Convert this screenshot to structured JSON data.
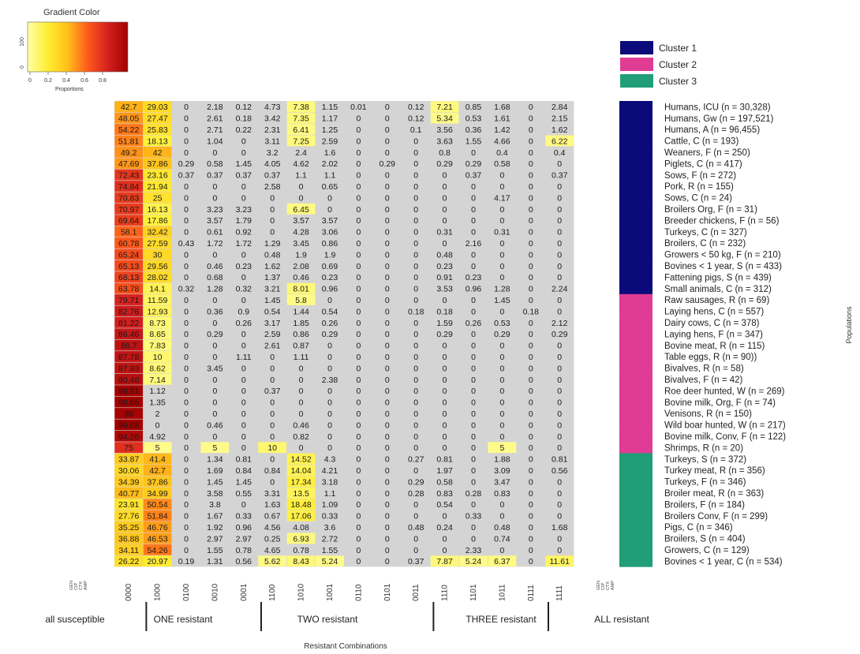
{
  "chart_data": {
    "type": "heatmap",
    "color_key": {
      "title": "Gradient Color",
      "ticks": [
        "0",
        "0.2",
        "0.4",
        "0.6",
        "0.8"
      ],
      "xlabel": "Proportions",
      "yticks": [
        "0",
        "100"
      ],
      "colors": [
        "#ffffa8",
        "#ffee33",
        "#ffbf1a",
        "#ff5a1a",
        "#d62020",
        "#a10000"
      ]
    },
    "cluster_legend": [
      {
        "name": "Cluster 1",
        "color": "#0a0a7a"
      },
      {
        "name": "Cluster 2",
        "color": "#e03c96"
      },
      {
        "name": "Cluster 3",
        "color": "#1f9e77"
      }
    ],
    "columns": [
      "0000",
      "1000",
      "0100",
      "0010",
      "0001",
      "1100",
      "1010",
      "1001",
      "0110",
      "0101",
      "0011",
      "1110",
      "1101",
      "1011",
      "0111",
      "1111"
    ],
    "bottom_axis_labels": [
      "GEN",
      "CIP",
      "CTX",
      "AMP"
    ],
    "groups": [
      "all susceptible",
      "ONE resistant",
      "TWO resistant",
      "THREE resistant",
      "ALL resistant"
    ],
    "xlabel": "Resistant Combinations",
    "ylabel": "Populations",
    "rows": [
      {
        "label": "Humans, ICU (n = 30,328)",
        "cluster": 1,
        "values": [
          "42.7",
          "29.03",
          "0",
          "2.18",
          "0.12",
          "4.73",
          "7.38",
          "1.15",
          "0.01",
          "0",
          "0.12",
          "7.21",
          "0.85",
          "1.68",
          "0",
          "2.84"
        ]
      },
      {
        "label": "Humans, Gw (n = 197,521)",
        "cluster": 1,
        "values": [
          "48.05",
          "27.47",
          "0",
          "2.61",
          "0.18",
          "3.42",
          "7.35",
          "1.17",
          "0",
          "0",
          "0.12",
          "5.34",
          "0.53",
          "1.61",
          "0",
          "2.15"
        ]
      },
      {
        "label": "Humans, A (n = 96,455)",
        "cluster": 1,
        "values": [
          "54.22",
          "25.83",
          "0",
          "2.71",
          "0.22",
          "2.31",
          "6.41",
          "1.25",
          "0",
          "0",
          "0.1",
          "3.56",
          "0.36",
          "1.42",
          "0",
          "1.62"
        ]
      },
      {
        "label": "Cattle, C (n = 193)",
        "cluster": 1,
        "values": [
          "51.81",
          "18.13",
          "0",
          "1.04",
          "0",
          "3.11",
          "7.25",
          "2.59",
          "0",
          "0",
          "0",
          "3.63",
          "1.55",
          "4.66",
          "0",
          "6.22"
        ]
      },
      {
        "label": "Weaners, F (n = 250)",
        "cluster": 1,
        "values": [
          "49.2",
          "42",
          "0",
          "0",
          "0",
          "3.2",
          "2.4",
          "1.6",
          "0",
          "0",
          "0",
          "0.8",
          "0",
          "0.4",
          "0",
          "0.4"
        ]
      },
      {
        "label": "Piglets, C (n = 417)",
        "cluster": 1,
        "values": [
          "47.69",
          "37.86",
          "0.29",
          "0.58",
          "1.45",
          "4.05",
          "4.62",
          "2.02",
          "0",
          "0.29",
          "0",
          "0.29",
          "0.29",
          "0.58",
          "0",
          "0"
        ]
      },
      {
        "label": "Sows, F (n = 272)",
        "cluster": 1,
        "values": [
          "72.43",
          "23.16",
          "0.37",
          "0.37",
          "0.37",
          "0.37",
          "1.1",
          "1.1",
          "0",
          "0",
          "0",
          "0",
          "0.37",
          "0",
          "0",
          "0.37"
        ]
      },
      {
        "label": "Pork, R (n = 155)",
        "cluster": 1,
        "values": [
          "74.84",
          "21.94",
          "0",
          "0",
          "0",
          "2.58",
          "0",
          "0.65",
          "0",
          "0",
          "0",
          "0",
          "0",
          "0",
          "0",
          "0"
        ]
      },
      {
        "label": "Sows, C (n = 24)",
        "cluster": 1,
        "values": [
          "70.83",
          "25",
          "0",
          "0",
          "0",
          "0",
          "0",
          "0",
          "0",
          "0",
          "0",
          "0",
          "0",
          "4.17",
          "0",
          "0"
        ]
      },
      {
        "label": "Broilers Org, F (n = 31)",
        "cluster": 1,
        "values": [
          "70.97",
          "16.13",
          "0",
          "3.23",
          "3.23",
          "0",
          "6.45",
          "0",
          "0",
          "0",
          "0",
          "0",
          "0",
          "0",
          "0",
          "0"
        ]
      },
      {
        "label": "Breeder chickens, F (n = 56)",
        "cluster": 1,
        "values": [
          "69.64",
          "17.86",
          "0",
          "3.57",
          "1.79",
          "0",
          "3.57",
          "3.57",
          "0",
          "0",
          "0",
          "0",
          "0",
          "0",
          "0",
          "0"
        ]
      },
      {
        "label": "Turkeys, C (n = 327)",
        "cluster": 1,
        "values": [
          "58.1",
          "32.42",
          "0",
          "0.61",
          "0.92",
          "0",
          "4.28",
          "3.06",
          "0",
          "0",
          "0",
          "0.31",
          "0",
          "0.31",
          "0",
          "0"
        ]
      },
      {
        "label": "Broilers, C (n = 232)",
        "cluster": 1,
        "values": [
          "60.78",
          "27.59",
          "0.43",
          "1.72",
          "1.72",
          "1.29",
          "3.45",
          "0.86",
          "0",
          "0",
          "0",
          "0",
          "2.16",
          "0",
          "0",
          "0"
        ]
      },
      {
        "label": "Growers < 50 kg, F (n = 210)",
        "cluster": 1,
        "values": [
          "65.24",
          "30",
          "0",
          "0",
          "0",
          "0.48",
          "1.9",
          "1.9",
          "0",
          "0",
          "0",
          "0.48",
          "0",
          "0",
          "0",
          "0"
        ]
      },
      {
        "label": "Bovines < 1 year, S (n = 433)",
        "cluster": 1,
        "values": [
          "65.13",
          "29.56",
          "0",
          "0.46",
          "0.23",
          "1.62",
          "2.08",
          "0.69",
          "0",
          "0",
          "0",
          "0.23",
          "0",
          "0",
          "0",
          "0"
        ]
      },
      {
        "label": "Fattening pigs, S (n = 439)",
        "cluster": 1,
        "values": [
          "68.13",
          "28.02",
          "0",
          "0.68",
          "0",
          "1.37",
          "0.46",
          "0.23",
          "0",
          "0",
          "0",
          "0.91",
          "0.23",
          "0",
          "0",
          "0"
        ]
      },
      {
        "label": "Small animals, C (n = 312)",
        "cluster": 1,
        "values": [
          "63.78",
          "14.1",
          "0.32",
          "1.28",
          "0.32",
          "3.21",
          "8.01",
          "0.96",
          "0",
          "0",
          "0",
          "3.53",
          "0.96",
          "1.28",
          "0",
          "2.24"
        ]
      },
      {
        "label": "Raw sausages, R (n = 69)",
        "cluster": 2,
        "values": [
          "79.71",
          "11.59",
          "0",
          "0",
          "0",
          "1.45",
          "5.8",
          "0",
          "0",
          "0",
          "0",
          "0",
          "0",
          "1.45",
          "0",
          "0"
        ]
      },
      {
        "label": "Laying hens, C (n = 557)",
        "cluster": 2,
        "values": [
          "82.76",
          "12.93",
          "0",
          "0.36",
          "0.9",
          "0.54",
          "1.44",
          "0.54",
          "0",
          "0",
          "0.18",
          "0.18",
          "0",
          "0",
          "0.18",
          "0"
        ]
      },
      {
        "label": "Dairy cows, C (n = 378)",
        "cluster": 2,
        "values": [
          "81.22",
          "8.73",
          "0",
          "0",
          "0.26",
          "3.17",
          "1.85",
          "0.26",
          "0",
          "0",
          "0",
          "1.59",
          "0.26",
          "0.53",
          "0",
          "2.12"
        ]
      },
      {
        "label": "Laying hens, F (n = 347)",
        "cluster": 2,
        "values": [
          "86.46",
          "8.65",
          "0",
          "0.29",
          "0",
          "2.59",
          "0.86",
          "0.29",
          "0",
          "0",
          "0",
          "0.29",
          "0",
          "0.29",
          "0",
          "0.29"
        ]
      },
      {
        "label": "Bovine meat, R (n = 115)",
        "cluster": 2,
        "values": [
          "88.7",
          "7.83",
          "0",
          "0",
          "0",
          "2.61",
          "0.87",
          "0",
          "0",
          "0",
          "0",
          "0",
          "0",
          "0",
          "0",
          "0"
        ]
      },
      {
        "label": "Table eggs, R (n = 90))",
        "cluster": 2,
        "values": [
          "87.78",
          "10",
          "0",
          "0",
          "1.11",
          "0",
          "1.11",
          "0",
          "0",
          "0",
          "0",
          "0",
          "0",
          "0",
          "0",
          "0"
        ]
      },
      {
        "label": "Bivalves, R (n = 58)",
        "cluster": 2,
        "values": [
          "87.93",
          "8.62",
          "0",
          "3.45",
          "0",
          "0",
          "0",
          "0",
          "0",
          "0",
          "0",
          "0",
          "0",
          "0",
          "0",
          "0"
        ]
      },
      {
        "label": "Bivalves, F (n = 42)",
        "cluster": 2,
        "values": [
          "90.48",
          "7.14",
          "0",
          "0",
          "0",
          "0",
          "0",
          "2.38",
          "0",
          "0",
          "0",
          "0",
          "0",
          "0",
          "0",
          "0"
        ]
      },
      {
        "label": "Roe deer hunted, W (n = 269)",
        "cluster": 2,
        "values": [
          "98.51",
          "1.12",
          "0",
          "0",
          "0",
          "0.37",
          "0",
          "0",
          "0",
          "0",
          "0",
          "0",
          "0",
          "0",
          "0",
          "0"
        ]
      },
      {
        "label": "Bovine milk, Org, F (n = 74)",
        "cluster": 2,
        "values": [
          "98.65",
          "1.35",
          "0",
          "0",
          "0",
          "0",
          "0",
          "0",
          "0",
          "0",
          "0",
          "0",
          "0",
          "0",
          "0",
          "0"
        ]
      },
      {
        "label": "Venisons, R (n = 150)",
        "cluster": 2,
        "values": [
          "98",
          "2",
          "0",
          "0",
          "0",
          "0",
          "0",
          "0",
          "0",
          "0",
          "0",
          "0",
          "0",
          "0",
          "0",
          "0"
        ]
      },
      {
        "label": "Wild boar hunted, W (n = 217)",
        "cluster": 2,
        "values": [
          "99.08",
          "0",
          "0",
          "0.46",
          "0",
          "0",
          "0.46",
          "0",
          "0",
          "0",
          "0",
          "0",
          "0",
          "0",
          "0",
          "0"
        ]
      },
      {
        "label": "Bovine milk, Conv, F (n = 122)",
        "cluster": 2,
        "values": [
          "94.26",
          "4.92",
          "0",
          "0",
          "0",
          "0",
          "0.82",
          "0",
          "0",
          "0",
          "0",
          "0",
          "0",
          "0",
          "0",
          "0"
        ]
      },
      {
        "label": "Shrimps, R (n = 20)",
        "cluster": 2,
        "values": [
          "75",
          "5",
          "0",
          "5",
          "0",
          "10",
          "0",
          "0",
          "0",
          "0",
          "0",
          "0",
          "0",
          "5",
          "0",
          "0"
        ]
      },
      {
        "label": "Turkeys, S (n = 372)",
        "cluster": 3,
        "values": [
          "33.87",
          "41.4",
          "0",
          "1.34",
          "0.81",
          "0",
          "14.52",
          "4.3",
          "0",
          "0",
          "0.27",
          "0.81",
          "0",
          "1.88",
          "0",
          "0.81"
        ]
      },
      {
        "label": "Turkey meat, R (n = 356)",
        "cluster": 3,
        "values": [
          "30.06",
          "42.7",
          "0",
          "1.69",
          "0.84",
          "0.84",
          "14.04",
          "4.21",
          "0",
          "0",
          "0",
          "1.97",
          "0",
          "3.09",
          "0",
          "0.56"
        ]
      },
      {
        "label": "Turkeys, F (n = 346)",
        "cluster": 3,
        "values": [
          "34.39",
          "37.86",
          "0",
          "1.45",
          "1.45",
          "0",
          "17.34",
          "3.18",
          "0",
          "0",
          "0.29",
          "0.58",
          "0",
          "3.47",
          "0",
          "0"
        ]
      },
      {
        "label": "Broiler meat, R (n = 363)",
        "cluster": 3,
        "values": [
          "40.77",
          "34.99",
          "0",
          "3.58",
          "0.55",
          "3.31",
          "13.5",
          "1.1",
          "0",
          "0",
          "0.28",
          "0.83",
          "0.28",
          "0.83",
          "0",
          "0"
        ]
      },
      {
        "label": "Broilers, F (n = 184)",
        "cluster": 3,
        "values": [
          "23.91",
          "50.54",
          "0",
          "3.8",
          "0",
          "1.63",
          "18.48",
          "1.09",
          "0",
          "0",
          "0",
          "0.54",
          "0",
          "0",
          "0",
          "0"
        ]
      },
      {
        "label": "Broilers Conv, F (n = 299)",
        "cluster": 3,
        "values": [
          "27.76",
          "51.84",
          "0",
          "1.67",
          "0.33",
          "0.67",
          "17.06",
          "0.33",
          "0",
          "0",
          "0",
          "0",
          "0.33",
          "0",
          "0",
          "0"
        ]
      },
      {
        "label": "Pigs, C (n = 346)",
        "cluster": 3,
        "values": [
          "35.25",
          "46.76",
          "0",
          "1.92",
          "0.96",
          "4.56",
          "4.08",
          "3.6",
          "0",
          "0",
          "0.48",
          "0.24",
          "0",
          "0.48",
          "0",
          "1.68"
        ]
      },
      {
        "label": "Broilers, S (n = 404)",
        "cluster": 3,
        "values": [
          "36.88",
          "46.53",
          "0",
          "2.97",
          "2.97",
          "0.25",
          "6.93",
          "2.72",
          "0",
          "0",
          "0",
          "0",
          "0",
          "0.74",
          "0",
          "0"
        ]
      },
      {
        "label": "Growers, C (n = 129)",
        "cluster": 3,
        "values": [
          "34.11",
          "54.26",
          "0",
          "1.55",
          "0.78",
          "4.65",
          "0.78",
          "1.55",
          "0",
          "0",
          "0",
          "0",
          "2.33",
          "0",
          "0",
          "0"
        ]
      },
      {
        "label": "Bovines < 1 year, C (n = 534)",
        "cluster": 3,
        "values": [
          "26.22",
          "20.97",
          "0.19",
          "1.31",
          "0.56",
          "5.62",
          "8.43",
          "5.24",
          "0",
          "0",
          "0.37",
          "7.87",
          "5.24",
          "6.37",
          "0",
          "11.61"
        ]
      }
    ]
  }
}
